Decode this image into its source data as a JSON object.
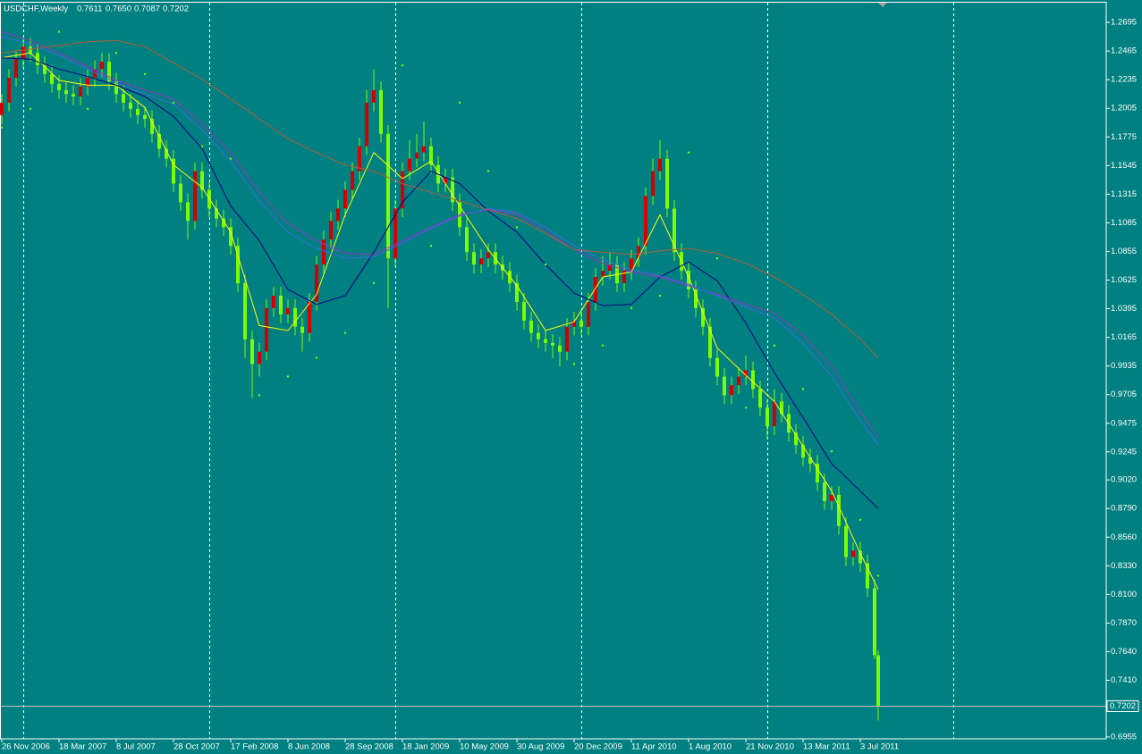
{
  "chart_data": {
    "type": "candlestick",
    "title": "USDCHF,Weekly",
    "header_values": [
      "0.7611",
      "0.7650",
      "0.7087",
      "0.7202"
    ],
    "background": "#008080",
    "up_color": "#d40000",
    "down_color": "#7cfc00",
    "wick_color": "#7cfc00",
    "xlim": [
      -0.5,
      308.75
    ],
    "ylim": [
      0.694,
      1.2875
    ],
    "xticks": [
      {
        "value": 0,
        "label": "26 Nov 2006"
      },
      {
        "value": 16,
        "label": "18 Mar 2007"
      },
      {
        "value": 32,
        "label": "8 Jul 2007"
      },
      {
        "value": 48,
        "label": "28 Oct 2007"
      },
      {
        "value": 64,
        "label": "17 Feb 2008"
      },
      {
        "value": 80,
        "label": "8 Jun 2008"
      },
      {
        "value": 96,
        "label": "28 Sep 2008"
      },
      {
        "value": 112,
        "label": "18 Jan 2009"
      },
      {
        "value": 128,
        "label": "10 May 2009"
      },
      {
        "value": 144,
        "label": "30 Aug 2009"
      },
      {
        "value": 160,
        "label": "20 Dec 2009"
      },
      {
        "value": 176,
        "label": "11 Apr 2010"
      },
      {
        "value": 192,
        "label": "1 Aug 2010"
      },
      {
        "value": 208,
        "label": "21 Nov 2010"
      },
      {
        "value": 224,
        "label": "13 Mar 2011"
      },
      {
        "value": 240,
        "label": "3 Jul 2011"
      }
    ],
    "yticks": [
      1.2695,
      1.2465,
      1.2235,
      1.2005,
      1.1775,
      1.1545,
      1.1315,
      1.1085,
      1.0855,
      1.0625,
      1.0395,
      1.0165,
      0.9935,
      0.9705,
      0.9475,
      0.9245,
      {
        "value": 0.902,
        "label": "0.9020"
      },
      {
        "value": 0.879,
        "label": "0.8790"
      },
      {
        "value": 0.856,
        "label": "0.8560"
      },
      {
        "value": 0.833,
        "label": "0.8330"
      },
      {
        "value": 0.81,
        "label": "0.8100"
      },
      {
        "value": 0.787,
        "label": "0.7870"
      },
      {
        "value": 0.764,
        "label": "0.7640"
      },
      {
        "value": 0.741,
        "label": "0.7410"
      },
      0.6955
    ],
    "year_separators": [
      6,
      58,
      110,
      162,
      214,
      266
    ],
    "current_price": 0.7202,
    "candles": {
      "x": [
        0,
        2,
        4,
        6,
        8,
        10,
        12,
        14,
        16,
        18,
        20,
        22,
        24,
        26,
        28,
        30,
        32,
        34,
        36,
        38,
        40,
        42,
        44,
        46,
        48,
        50,
        52,
        54,
        56,
        58,
        60,
        62,
        64,
        66,
        68,
        70,
        72,
        74,
        76,
        78,
        80,
        82,
        84,
        86,
        88,
        90,
        92,
        94,
        96,
        98,
        100,
        102,
        104,
        106,
        108,
        110,
        112,
        114,
        116,
        118,
        120,
        122,
        124,
        126,
        128,
        130,
        132,
        134,
        136,
        138,
        140,
        142,
        144,
        146,
        148,
        150,
        152,
        154,
        156,
        158,
        160,
        162,
        164,
        166,
        168,
        170,
        172,
        174,
        176,
        178,
        180,
        182,
        184,
        186,
        188,
        190,
        192,
        194,
        196,
        198,
        200,
        202,
        204,
        206,
        208,
        210,
        212,
        214,
        216,
        218,
        220,
        222,
        224,
        226,
        228,
        230,
        232,
        234,
        236,
        238,
        240,
        242,
        244,
        245
      ],
      "ohlc": [
        [
          1.195,
          1.212,
          1.188,
          1.205
        ],
        [
          1.205,
          1.232,
          1.198,
          1.225
        ],
        [
          1.225,
          1.247,
          1.218,
          1.24
        ],
        [
          1.24,
          1.258,
          1.233,
          1.25
        ],
        [
          1.25,
          1.257,
          1.238,
          1.245
        ],
        [
          1.245,
          1.252,
          1.228,
          1.235
        ],
        [
          1.235,
          1.242,
          1.221,
          1.228
        ],
        [
          1.228,
          1.235,
          1.213,
          1.22
        ],
        [
          1.22,
          1.227,
          1.208,
          1.215
        ],
        [
          1.215,
          1.222,
          1.205,
          1.212
        ],
        [
          1.212,
          1.219,
          1.203,
          1.21
        ],
        [
          1.21,
          1.225,
          1.203,
          1.218
        ],
        [
          1.218,
          1.232,
          1.211,
          1.225
        ],
        [
          1.225,
          1.239,
          1.218,
          1.232
        ],
        [
          1.232,
          1.245,
          1.225,
          1.238
        ],
        [
          1.238,
          1.245,
          1.215,
          1.222
        ],
        [
          1.222,
          1.229,
          1.205,
          1.212
        ],
        [
          1.212,
          1.219,
          1.198,
          1.205
        ],
        [
          1.205,
          1.212,
          1.193,
          1.2
        ],
        [
          1.2,
          1.207,
          1.188,
          1.195
        ],
        [
          1.195,
          1.202,
          1.185,
          1.192
        ],
        [
          1.192,
          1.199,
          1.173,
          1.18
        ],
        [
          1.18,
          1.187,
          1.161,
          1.168
        ],
        [
          1.168,
          1.175,
          1.153,
          1.16
        ],
        [
          1.16,
          1.167,
          1.133,
          1.14
        ],
        [
          1.14,
          1.147,
          1.118,
          1.125
        ],
        [
          1.125,
          1.132,
          1.095,
          1.11
        ],
        [
          1.11,
          1.157,
          1.103,
          1.15
        ],
        [
          1.15,
          1.157,
          1.128,
          1.135
        ],
        [
          1.135,
          1.142,
          1.113,
          1.12
        ],
        [
          1.12,
          1.127,
          1.105,
          1.112
        ],
        [
          1.112,
          1.119,
          1.098,
          1.105
        ],
        [
          1.105,
          1.112,
          1.083,
          1.09
        ],
        [
          1.09,
          1.097,
          1.053,
          1.06
        ],
        [
          1.06,
          1.067,
          1.0,
          1.015
        ],
        [
          1.015,
          1.022,
          0.968,
          0.995
        ],
        [
          0.995,
          1.012,
          0.985,
          1.005
        ],
        [
          1.005,
          1.047,
          0.998,
          1.04
        ],
        [
          1.04,
          1.057,
          1.033,
          1.05
        ],
        [
          1.05,
          1.057,
          1.028,
          1.035
        ],
        [
          1.035,
          1.047,
          1.028,
          1.04
        ],
        [
          1.04,
          1.047,
          1.018,
          1.025
        ],
        [
          1.025,
          1.032,
          1.005,
          1.02
        ],
        [
          1.02,
          1.052,
          1.013,
          1.045
        ],
        [
          1.045,
          1.082,
          1.038,
          1.075
        ],
        [
          1.075,
          1.102,
          1.068,
          1.095
        ],
        [
          1.095,
          1.117,
          1.088,
          1.11
        ],
        [
          1.11,
          1.127,
          1.103,
          1.12
        ],
        [
          1.12,
          1.142,
          1.113,
          1.135
        ],
        [
          1.135,
          1.157,
          1.128,
          1.15
        ],
        [
          1.15,
          1.177,
          1.143,
          1.17
        ],
        [
          1.17,
          1.215,
          1.163,
          1.205
        ],
        [
          1.205,
          1.232,
          1.198,
          1.215
        ],
        [
          1.215,
          1.222,
          1.173,
          1.18
        ],
        [
          1.18,
          1.187,
          1.04,
          1.08
        ],
        [
          1.08,
          1.127,
          1.073,
          1.12
        ],
        [
          1.12,
          1.157,
          1.113,
          1.15
        ],
        [
          1.15,
          1.175,
          1.143,
          1.16
        ],
        [
          1.16,
          1.18,
          1.153,
          1.165
        ],
        [
          1.165,
          1.19,
          1.158,
          1.17
        ],
        [
          1.17,
          1.177,
          1.148,
          1.155
        ],
        [
          1.155,
          1.162,
          1.133,
          1.14
        ],
        [
          1.14,
          1.152,
          1.133,
          1.145
        ],
        [
          1.145,
          1.152,
          1.118,
          1.125
        ],
        [
          1.125,
          1.132,
          1.098,
          1.105
        ],
        [
          1.105,
          1.112,
          1.078,
          1.085
        ],
        [
          1.085,
          1.092,
          1.068,
          1.075
        ],
        [
          1.075,
          1.087,
          1.068,
          1.08
        ],
        [
          1.08,
          1.092,
          1.073,
          1.085
        ],
        [
          1.085,
          1.092,
          1.068,
          1.075
        ],
        [
          1.075,
          1.082,
          1.063,
          1.07
        ],
        [
          1.07,
          1.077,
          1.053,
          1.06
        ],
        [
          1.06,
          1.067,
          1.038,
          1.045
        ],
        [
          1.045,
          1.052,
          1.023,
          1.03
        ],
        [
          1.03,
          1.037,
          1.013,
          1.02
        ],
        [
          1.02,
          1.027,
          1.008,
          1.015
        ],
        [
          1.015,
          1.022,
          1.005,
          1.012
        ],
        [
          1.012,
          1.019,
          1.0,
          1.01
        ],
        [
          1.01,
          1.017,
          0.993,
          1.005
        ],
        [
          1.005,
          1.032,
          0.998,
          1.025
        ],
        [
          1.025,
          1.037,
          1.018,
          1.03
        ],
        [
          1.03,
          1.037,
          1.018,
          1.025
        ],
        [
          1.025,
          1.052,
          1.018,
          1.045
        ],
        [
          1.045,
          1.072,
          1.038,
          1.065
        ],
        [
          1.065,
          1.082,
          1.058,
          1.07
        ],
        [
          1.07,
          1.085,
          1.063,
          1.075
        ],
        [
          1.075,
          1.082,
          1.053,
          1.06
        ],
        [
          1.06,
          1.077,
          1.053,
          1.07
        ],
        [
          1.07,
          1.087,
          1.063,
          1.08
        ],
        [
          1.08,
          1.097,
          1.073,
          1.09
        ],
        [
          1.09,
          1.137,
          1.083,
          1.13
        ],
        [
          1.13,
          1.16,
          1.123,
          1.15
        ],
        [
          1.15,
          1.175,
          1.143,
          1.16
        ],
        [
          1.16,
          1.167,
          1.113,
          1.12
        ],
        [
          1.12,
          1.127,
          1.078,
          1.085
        ],
        [
          1.085,
          1.092,
          1.063,
          1.07
        ],
        [
          1.07,
          1.077,
          1.048,
          1.055
        ],
        [
          1.055,
          1.062,
          1.033,
          1.04
        ],
        [
          1.04,
          1.047,
          1.018,
          1.025
        ],
        [
          1.025,
          1.032,
          0.993,
          1.0
        ],
        [
          1.0,
          1.007,
          0.978,
          0.985
        ],
        [
          0.985,
          0.992,
          0.963,
          0.97
        ],
        [
          0.97,
          0.985,
          0.963,
          0.978
        ],
        [
          0.978,
          0.992,
          0.971,
          0.985
        ],
        [
          0.985,
          1.002,
          0.978,
          0.99
        ],
        [
          0.99,
          0.997,
          0.968,
          0.975
        ],
        [
          0.975,
          0.982,
          0.953,
          0.96
        ],
        [
          0.96,
          0.967,
          0.935,
          0.945
        ],
        [
          0.945,
          0.975,
          0.938,
          0.965
        ],
        [
          0.965,
          0.972,
          0.948,
          0.955
        ],
        [
          0.955,
          0.962,
          0.933,
          0.94
        ],
        [
          0.94,
          0.947,
          0.923,
          0.93
        ],
        [
          0.93,
          0.937,
          0.913,
          0.92
        ],
        [
          0.92,
          0.927,
          0.908,
          0.915
        ],
        [
          0.915,
          0.922,
          0.893,
          0.9
        ],
        [
          0.9,
          0.907,
          0.878,
          0.885
        ],
        [
          0.885,
          0.897,
          0.878,
          0.89
        ],
        [
          0.89,
          0.897,
          0.858,
          0.865
        ],
        [
          0.865,
          0.872,
          0.833,
          0.84
        ],
        [
          0.84,
          0.852,
          0.833,
          0.845
        ],
        [
          0.845,
          0.852,
          0.828,
          0.835
        ],
        [
          0.835,
          0.842,
          0.808,
          0.815
        ],
        [
          0.815,
          0.822,
          0.758,
          0.7611
        ],
        [
          0.7611,
          0.765,
          0.7087,
          0.7202
        ]
      ]
    },
    "indicator_x": [
      0,
      8,
      16,
      24,
      32,
      40,
      48,
      56,
      64,
      72,
      80,
      88,
      96,
      104,
      112,
      120,
      128,
      136,
      144,
      152,
      160,
      168,
      176,
      184,
      192,
      200,
      208,
      216,
      224,
      232,
      240,
      245
    ],
    "series": [
      {
        "color": "#ffff00",
        "values": [
          1.241,
          1.245,
          1.223,
          1.219,
          1.219,
          1.201,
          1.155,
          1.137,
          1.101,
          1.026,
          1.022,
          1.051,
          1.115,
          1.165,
          1.144,
          1.158,
          1.122,
          1.087,
          1.058,
          1.022,
          1.029,
          1.065,
          1.069,
          1.115,
          1.065,
          1.008,
          0.986,
          0.965,
          0.929,
          0.893,
          0.843,
          0.814
        ]
      },
      {
        "color": "#000080",
        "values": [
          1.241,
          1.24,
          1.232,
          1.226,
          1.219,
          1.21,
          1.194,
          1.168,
          1.122,
          1.094,
          1.055,
          1.043,
          1.05,
          1.085,
          1.125,
          1.15,
          1.14,
          1.118,
          1.101,
          1.075,
          1.052,
          1.042,
          1.043,
          1.065,
          1.077,
          1.062,
          1.028,
          0.988,
          0.952,
          0.915,
          0.893,
          0.879
        ]
      },
      {
        "color": "#9932cc",
        "values": [
          1.262,
          1.255,
          1.245,
          1.234,
          1.223,
          1.215,
          1.208,
          1.188,
          1.165,
          1.133,
          1.108,
          1.094,
          1.084,
          1.083,
          1.094,
          1.105,
          1.115,
          1.119,
          1.115,
          1.102,
          1.087,
          1.076,
          1.069,
          1.065,
          1.058,
          1.051,
          1.043,
          1.036,
          1.018,
          0.993,
          0.957,
          0.936
        ]
      },
      {
        "color": "#4169e1",
        "values": [
          1.258,
          1.252,
          1.243,
          1.232,
          1.221,
          1.212,
          1.204,
          1.183,
          1.158,
          1.126,
          1.101,
          1.088,
          1.08,
          1.081,
          1.092,
          1.104,
          1.114,
          1.12,
          1.117,
          1.105,
          1.09,
          1.079,
          1.071,
          1.066,
          1.059,
          1.05,
          1.041,
          1.032,
          1.012,
          0.985,
          0.95,
          0.93
        ]
      },
      {
        "color": "#b0603a",
        "values": [
          1.245,
          1.248,
          1.251,
          1.254,
          1.255,
          1.25,
          1.237,
          1.224,
          1.208,
          1.192,
          1.176,
          1.165,
          1.155,
          1.15,
          1.14,
          1.133,
          1.126,
          1.119,
          1.112,
          1.1,
          1.087,
          1.085,
          1.083,
          1.086,
          1.088,
          1.084,
          1.076,
          1.065,
          1.051,
          1.035,
          1.015,
          1.0
        ]
      }
    ],
    "sar": {
      "color": "#7cfc00",
      "values": [
        1.185,
        1.2,
        1.262,
        1.2,
        1.245,
        1.228,
        1.205,
        1.17,
        1.16,
        0.97,
        0.985,
        1.0,
        1.02,
        1.06,
        1.235,
        1.09,
        1.205,
        1.15,
        1.105,
        1.075,
        0.995,
        1.01,
        1.04,
        1.05,
        1.165,
        1.08,
        0.96,
        1.01,
        0.975,
        0.925,
        0.87,
        0.825
      ]
    }
  }
}
